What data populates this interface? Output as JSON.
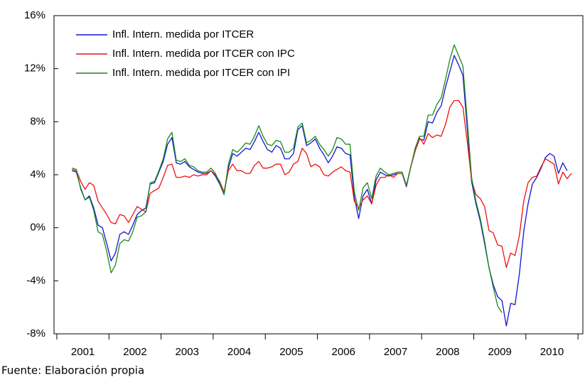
{
  "chart_data": {
    "type": "line",
    "categories": [
      null,
      null,
      null,
      "2001",
      null,
      null,
      null,
      null,
      null,
      null,
      null,
      null,
      null,
      null,
      null,
      "2002",
      null,
      null,
      null,
      null,
      null,
      null,
      null,
      null,
      null,
      null,
      null,
      "2003",
      null,
      null,
      null,
      null,
      null,
      null,
      null,
      null,
      null,
      null,
      null,
      "2004",
      null,
      null,
      null,
      null,
      null,
      null,
      null,
      null,
      null,
      null,
      null,
      "2005",
      null,
      null,
      null,
      null,
      null,
      null,
      null,
      null,
      null,
      null,
      null,
      "2006",
      null,
      null,
      null,
      null,
      null,
      null,
      null,
      null,
      null,
      null,
      null,
      "2007",
      null,
      null,
      null,
      null,
      null,
      null,
      null,
      null,
      null,
      null,
      null,
      "2008",
      null,
      null,
      null,
      null,
      null,
      null,
      null,
      null,
      null,
      null,
      null,
      "2009",
      null,
      null,
      null,
      null,
      null,
      null,
      null,
      null,
      null,
      null,
      null,
      "2010",
      null,
      null,
      null,
      null
    ],
    "series": [
      {
        "name": "Infl. Intern. medida por ITCER",
        "color": "#1414d2",
        "values": [
          4.3,
          4.2,
          3.0,
          2.1,
          2.4,
          1.5,
          0.2,
          0.0,
          -1.2,
          -2.5,
          -1.9,
          -0.5,
          -0.3,
          -0.5,
          0.2,
          1.0,
          1.3,
          1.5,
          3.3,
          3.4,
          4.2,
          5.0,
          6.3,
          6.8,
          4.9,
          4.8,
          5.0,
          4.6,
          4.4,
          4.2,
          4.1,
          4.1,
          4.3,
          3.9,
          3.3,
          2.5,
          4.5,
          5.6,
          5.4,
          5.7,
          6.0,
          5.9,
          6.5,
          7.2,
          6.5,
          5.9,
          5.7,
          6.2,
          6.0,
          5.2,
          5.2,
          5.6,
          7.4,
          7.7,
          6.2,
          6.4,
          6.7,
          6.0,
          5.5,
          4.9,
          5.4,
          6.1,
          6.0,
          5.6,
          5.5,
          2.3,
          0.7,
          2.4,
          2.9,
          1.8,
          3.6,
          4.2,
          4.0,
          3.9,
          4.0,
          4.1,
          4.1,
          3.1,
          4.6,
          5.8,
          6.7,
          6.6,
          8.0,
          7.9,
          8.7,
          9.2,
          10.6,
          11.8,
          13.0,
          12.3,
          11.5,
          7.5,
          3.5,
          1.8,
          0.5,
          -1.2,
          -3.0,
          -4.3,
          -5.2,
          -5.5,
          -7.4,
          -5.7,
          -5.8,
          -3.5,
          -0.3,
          1.8,
          3.3,
          3.8,
          4.5,
          5.3,
          5.6,
          5.4,
          4.1,
          4.9,
          4.3,
          null
        ]
      },
      {
        "name": "Infl. Intern. medida por ITCER con IPC",
        "color": "#ee1111",
        "values": [
          4.4,
          4.3,
          3.5,
          2.9,
          3.4,
          3.2,
          2.0,
          1.5,
          1.0,
          0.4,
          0.3,
          1.0,
          0.9,
          0.4,
          1.0,
          1.6,
          1.4,
          1.2,
          2.6,
          2.8,
          3.0,
          3.8,
          4.7,
          4.8,
          3.8,
          3.8,
          3.9,
          3.8,
          4.0,
          3.9,
          4.0,
          4.0,
          4.3,
          4.0,
          3.5,
          2.7,
          4.3,
          4.8,
          4.3,
          4.3,
          4.1,
          4.1,
          4.7,
          5.0,
          4.5,
          4.5,
          4.6,
          4.8,
          4.8,
          4.0,
          4.2,
          4.8,
          5.0,
          6.0,
          5.6,
          4.6,
          4.8,
          4.6,
          4.0,
          3.9,
          4.2,
          4.4,
          4.6,
          4.3,
          4.2,
          2.0,
          1.5,
          2.1,
          2.4,
          1.8,
          3.2,
          3.8,
          3.8,
          4.0,
          3.8,
          4.1,
          4.1,
          3.2,
          4.6,
          5.8,
          6.8,
          6.3,
          7.1,
          6.8,
          7.0,
          6.9,
          7.8,
          9.1,
          9.6,
          9.6,
          9.1,
          6.5,
          3.6,
          2.5,
          2.2,
          1.6,
          -0.2,
          -0.4,
          -1.3,
          -1.4,
          -3.0,
          -1.9,
          -2.1,
          -0.6,
          2.0,
          3.4,
          3.8,
          3.9,
          4.6,
          5.2,
          5.0,
          4.8,
          3.3,
          4.2,
          3.7,
          4.1
        ]
      },
      {
        "name": "Infl. Intern. medida por ITCER con IPI",
        "color": "#1a8a1a",
        "values": [
          4.5,
          4.4,
          2.9,
          2.1,
          2.3,
          1.3,
          -0.3,
          -0.5,
          -1.8,
          -3.4,
          -2.8,
          -1.2,
          -0.9,
          -1.0,
          -0.3,
          0.8,
          0.9,
          1.2,
          3.4,
          3.5,
          4.3,
          5.2,
          6.7,
          7.2,
          5.1,
          5.0,
          5.2,
          4.7,
          4.6,
          4.3,
          4.2,
          4.2,
          4.5,
          4.1,
          3.4,
          2.5,
          4.8,
          5.9,
          5.7,
          6.0,
          6.4,
          6.3,
          6.9,
          7.7,
          6.9,
          6.3,
          6.2,
          6.6,
          6.5,
          5.7,
          5.7,
          6.0,
          7.6,
          7.9,
          6.4,
          6.6,
          6.9,
          6.3,
          5.9,
          5.4,
          5.9,
          6.8,
          6.7,
          6.3,
          6.3,
          2.7,
          1.3,
          3.0,
          3.4,
          2.2,
          3.9,
          4.5,
          4.2,
          4.0,
          4.1,
          4.2,
          4.2,
          3.2,
          4.6,
          6.0,
          6.9,
          6.9,
          8.5,
          8.5,
          9.3,
          9.8,
          11.2,
          12.7,
          13.8,
          13.0,
          12.2,
          8.1,
          3.8,
          2.0,
          0.7,
          -1.0,
          -3.0,
          -4.5,
          -5.9,
          -6.4,
          null,
          null,
          null,
          null,
          null,
          null,
          null,
          null,
          null,
          null,
          null,
          null,
          null,
          null,
          null,
          null
        ]
      }
    ],
    "ylim": [
      -8,
      16
    ],
    "yticks": [
      {
        "value": -8,
        "label": "-8%"
      },
      {
        "value": -4,
        "label": "-4%"
      },
      {
        "value": 0,
        "label": "0%"
      },
      {
        "value": 4,
        "label": "4%"
      },
      {
        "value": 8,
        "label": "8%"
      },
      {
        "value": 12,
        "label": "12%"
      },
      {
        "value": 16,
        "label": "16%"
      }
    ],
    "legend": "upper left",
    "note": "Fuente: Elaboración propia"
  }
}
